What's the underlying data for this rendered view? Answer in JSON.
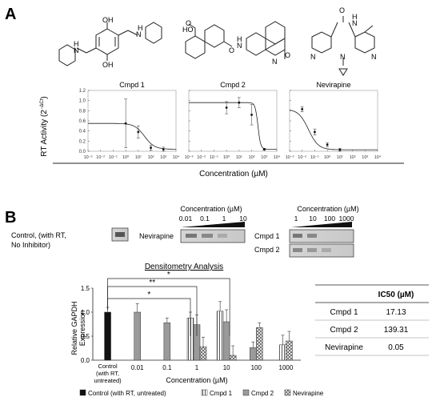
{
  "panel_a_label": "A",
  "panel_b_label": "B",
  "curves": {
    "ylabel": "RT Activity (2",
    "ylabel_sup": "−ΔCt",
    "ylabel_end": ")",
    "xlabel": "Concentration (µM)",
    "yticks": [
      "1.2",
      "1.0",
      "0.8",
      "0.6",
      "0.4",
      "0.2",
      "0.0"
    ],
    "xticks": [
      "10⁻³",
      "10⁻²",
      "10⁻¹",
      "10⁰",
      "10¹",
      "10²",
      "10³",
      "10⁴"
    ],
    "titles": [
      "Cmpd 1",
      "Cmpd 2",
      "Nevirapine"
    ]
  },
  "gel": {
    "control_label": "Control, (with RT,\nNo Inhibitor)",
    "control_line1": "Control, (with RT,",
    "control_line2": "No Inhibitor)",
    "nevirapine_label": "Nevirapine",
    "conc_label_1": "Concentration (µM)",
    "conc_ticks_1": [
      "0.01",
      "0.1",
      "1",
      "10"
    ],
    "conc_label_2": "Concentration (µM)",
    "conc_ticks_2": [
      "1",
      "10",
      "100",
      "1000"
    ],
    "cmpd1_label": "Cmpd 1",
    "cmpd2_label": "Cmpd 2"
  },
  "densitometry": {
    "title": "Densitometry Analysis",
    "ylabel_1": "Relative GAPDH",
    "ylabel_2": "Expression",
    "xlabel": "Concentration (µM)",
    "yticks": [
      "1.5",
      "1.0",
      "0.5",
      "0.0"
    ],
    "significance": [
      "*",
      "**",
      "*"
    ],
    "legend": [
      {
        "label": "Control (with RT, untreated)",
        "pattern": "solid-black"
      },
      {
        "label": "Cmpd 1",
        "pattern": "vertical-lines"
      },
      {
        "label": "Cmpd 2",
        "pattern": "gray"
      },
      {
        "label": "Nevirapine",
        "pattern": "crosshatch"
      }
    ]
  },
  "chart_data": [
    {
      "type": "line",
      "title": "Cmpd 1",
      "x_scale": "log",
      "xlim": [
        0.001,
        10000
      ],
      "ylim": [
        0,
        1.2
      ],
      "points": [
        {
          "x": 1,
          "y": 0.55,
          "err": 0.48
        },
        {
          "x": 10,
          "y": 0.38,
          "err": 0.12
        },
        {
          "x": 100,
          "y": 0.07,
          "err": 0.05
        },
        {
          "x": 1000,
          "y": 0.04,
          "err": 0.04
        }
      ]
    },
    {
      "type": "line",
      "title": "Cmpd 2",
      "x_scale": "log",
      "xlim": [
        0.001,
        10000
      ],
      "ylim": [
        0,
        1.2
      ],
      "points": [
        {
          "x": 1,
          "y": 0.86,
          "err": 0.12
        },
        {
          "x": 10,
          "y": 0.96,
          "err": 0.1
        },
        {
          "x": 100,
          "y": 0.72,
          "err": 0.2
        },
        {
          "x": 1000,
          "y": 0.04,
          "err": 0.02
        }
      ]
    },
    {
      "type": "line",
      "title": "Nevirapine",
      "x_scale": "log",
      "xlim": [
        0.001,
        10000
      ],
      "ylim": [
        0,
        1.2
      ],
      "points": [
        {
          "x": 0.01,
          "y": 0.83,
          "err": 0.05
        },
        {
          "x": 0.1,
          "y": 0.38,
          "err": 0.06
        },
        {
          "x": 1,
          "y": 0.13,
          "err": 0.04
        },
        {
          "x": 10,
          "y": 0.03,
          "err": 0.03
        }
      ]
    },
    {
      "type": "bar",
      "title": "Densitometry Analysis",
      "ylabel": "Relative GAPDH Expression",
      "xlabel": "Concentration (µM)",
      "categories": [
        "Control\n(with RT,\nuntreated)",
        "0.01",
        "0.1",
        "1",
        "10",
        "100",
        "1000"
      ],
      "category_labels": [
        "Control",
        "(with RT,",
        "untreated)"
      ],
      "ylim": [
        0,
        1.5
      ],
      "series": [
        {
          "name": "Control (with RT, untreated)",
          "values": [
            1.0,
            null,
            null,
            null,
            null,
            null,
            null
          ],
          "errors": [
            0.1,
            null,
            null,
            null,
            null,
            null,
            null
          ]
        },
        {
          "name": "Cmpd 1",
          "values": [
            null,
            null,
            null,
            0.88,
            1.02,
            null,
            0.32
          ],
          "errors": [
            null,
            null,
            null,
            0.12,
            0.2,
            null,
            0.2
          ]
        },
        {
          "name": "Cmpd 2",
          "values": [
            null,
            1.0,
            0.78,
            0.74,
            0.8,
            0.26,
            null
          ],
          "errors": [
            null,
            0.18,
            0.1,
            0.2,
            0.25,
            0.12,
            null
          ]
        },
        {
          "name": "Nevirapine",
          "values": [
            null,
            null,
            null,
            0.28,
            0.1,
            0.68,
            0.4
          ],
          "errors": [
            null,
            null,
            null,
            0.2,
            0.2,
            0.1,
            0.2
          ]
        }
      ]
    },
    {
      "type": "table",
      "columns": [
        "",
        "IC50 (µM)"
      ],
      "rows": [
        [
          "Cmpd 1",
          "17.13"
        ],
        [
          "Cmpd 2",
          "139.31"
        ],
        [
          "Nevirapine",
          "0.05"
        ]
      ]
    }
  ]
}
